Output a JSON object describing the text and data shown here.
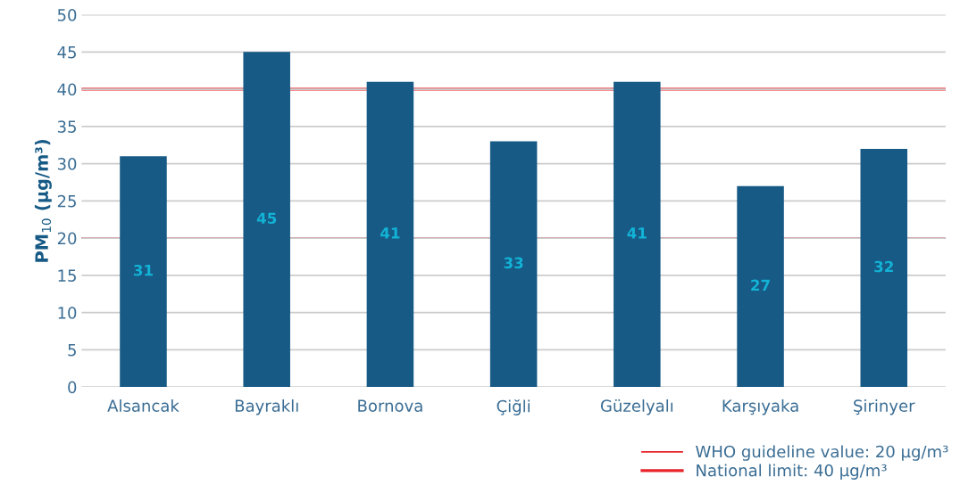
{
  "chart_data": {
    "type": "bar",
    "ylabel": "PM$_{10}$ (µg/m³)",
    "categories": [
      "Alsancak",
      "Bayraklı",
      "Bornova",
      "Çiğli",
      "Güzelyalı",
      "Karşıyaka",
      "Şirinyer"
    ],
    "values": [
      31,
      45,
      41,
      33,
      41,
      27,
      32
    ],
    "color": "#175a85",
    "data_labels": true,
    "ylim": [
      0,
      50
    ],
    "yticks": [
      0,
      5,
      10,
      15,
      20,
      25,
      30,
      35,
      40,
      45,
      50
    ],
    "grid": "y",
    "legend": "bottom right",
    "ref_lines": [
      {
        "axis": "y",
        "value": 20,
        "label": "WHO guideline value: 20 µg/m³",
        "color": "#e8232a",
        "line_style": "solid"
      },
      {
        "axis": "y",
        "value": 40,
        "label": "National limit: 40 µg/m³",
        "color": "#e8232a",
        "line_style": "solid"
      }
    ]
  }
}
